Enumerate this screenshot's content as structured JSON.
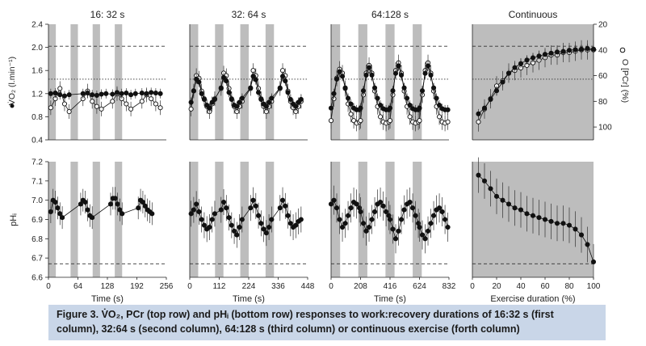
{
  "caption": {
    "label": "Figure 3.",
    "text": "V̇O₂, PCr (top row) and pHᵢ (bottom row) responses to work:recovery durations of 16:32 s (first column), 32:64 s (second column), 64:128 s (third column) or continuous exercise (forth column)"
  },
  "columns": [
    {
      "title": "16: 32 s",
      "xlabel": "Time (s)",
      "xticks": [
        "0",
        "64",
        "128",
        "192",
        "256"
      ],
      "xlim": [
        0,
        256
      ],
      "work_s": 16,
      "rec_s": 32,
      "n_cycles": 4
    },
    {
      "title": "32: 64 s",
      "xlabel": "Time (s)",
      "xticks": [
        "0",
        "112",
        "224",
        "336",
        "448"
      ],
      "xlim": [
        0,
        448
      ],
      "work_s": 32,
      "rec_s": 64,
      "n_cycles": 4
    },
    {
      "title": "64:128 s",
      "xlabel": "Time (s)",
      "xticks": [
        "0",
        "208",
        "416",
        "624",
        "832"
      ],
      "xlim": [
        0,
        832
      ],
      "work_s": 64,
      "rec_s": 128,
      "n_cycles": 4
    },
    {
      "title": "Continuous",
      "xlabel": "Exercise duration (%)",
      "xticks": [
        "0",
        "20",
        "40",
        "60",
        "80",
        "100"
      ],
      "xlim": [
        0,
        100
      ]
    }
  ],
  "axes": {
    "vo2": {
      "label": "V̇O₂ (l.min⁻¹)",
      "legend_marker": "filled circle",
      "ylim": [
        0.4,
        2.4
      ],
      "ticks": [
        "0.4",
        "0.8",
        "1.2",
        "1.6",
        "2.0",
        "2.4"
      ]
    },
    "pcr": {
      "label": "O [PCr] (%)",
      "legend_marker": "open circle",
      "ylim_top_to_bottom": [
        20,
        110
      ],
      "ticks": [
        "20",
        "40",
        "60",
        "80",
        "100"
      ]
    },
    "ph": {
      "label": "pHᵢ",
      "ylim": [
        6.6,
        7.2
      ],
      "ticks": [
        "6.6",
        "6.7",
        "6.8",
        "6.9",
        "7.0",
        "7.1",
        "7.2"
      ]
    }
  },
  "reference_lines": {
    "vo2_dashed": 2.02,
    "vo2_dotted": 1.45,
    "ph_dashed": 6.67
  },
  "colors": {
    "work_band": "#bdbdbd",
    "continuous_bg": "#bdbdbd",
    "marker": "#111111",
    "caption_bg": "#c9d6e8"
  },
  "chart_data": [
    {
      "panel": "16:32 VO2 & PCr",
      "type": "scatter",
      "vo2_x": [
        5,
        15,
        25,
        35,
        45,
        75,
        85,
        95,
        105,
        115,
        125,
        139,
        149,
        159,
        169,
        179,
        189,
        203,
        213,
        223,
        233,
        243
      ],
      "vo2_y": [
        1.2,
        1.21,
        1.18,
        1.16,
        1.18,
        1.2,
        1.21,
        1.18,
        1.17,
        1.19,
        1.2,
        1.19,
        1.22,
        1.2,
        1.21,
        1.18,
        1.2,
        1.21,
        1.2,
        1.22,
        1.21,
        1.2
      ],
      "pcr_x": [
        5,
        15,
        25,
        35,
        45,
        75,
        85,
        95,
        105,
        115,
        139,
        149,
        159,
        169,
        179,
        203,
        213,
        223,
        233,
        243
      ],
      "pcr_y": [
        85,
        78,
        70,
        82,
        88,
        78,
        72,
        80,
        84,
        86,
        80,
        74,
        78,
        82,
        86,
        80,
        75,
        78,
        82,
        85
      ]
    },
    {
      "panel": "32:64 VO2 & PCr",
      "type": "scatter",
      "vo2_x": [
        5,
        15,
        25,
        35,
        45,
        55,
        65,
        75,
        85,
        95,
        119,
        129,
        139,
        149,
        159,
        169,
        179,
        189,
        199,
        231,
        241,
        251,
        261,
        271,
        281,
        291,
        301,
        311,
        343,
        353,
        363,
        373,
        383,
        393,
        403,
        413,
        423
      ],
      "vo2_y": [
        1.05,
        1.25,
        1.45,
        1.4,
        1.2,
        1.1,
        1.0,
        0.95,
        1.05,
        1.1,
        1.3,
        1.48,
        1.42,
        1.22,
        1.1,
        1.0,
        0.98,
        1.05,
        1.12,
        1.3,
        1.5,
        1.44,
        1.22,
        1.1,
        1.02,
        0.98,
        1.05,
        1.12,
        1.3,
        1.5,
        1.42,
        1.22,
        1.1,
        1.02,
        0.98,
        1.05,
        1.1
      ],
      "pcr_x": [
        5,
        15,
        25,
        35,
        45,
        55,
        65,
        75,
        85,
        95,
        119,
        129,
        139,
        149,
        159,
        169,
        179,
        189,
        199,
        231,
        241,
        251,
        261,
        271,
        281,
        291,
        301,
        311,
        343,
        353,
        363,
        373,
        383,
        393,
        403,
        413,
        423
      ],
      "pcr_y": [
        86,
        72,
        60,
        62,
        72,
        78,
        84,
        88,
        82,
        78,
        70,
        58,
        60,
        70,
        78,
        84,
        88,
        84,
        80,
        70,
        56,
        60,
        70,
        78,
        84,
        88,
        84,
        80,
        70,
        56,
        60,
        72,
        80,
        85,
        88,
        84,
        80
      ]
    },
    {
      "panel": "64:128 VO2 & PCr",
      "type": "line",
      "vo2_x": [
        0,
        20,
        40,
        60,
        80,
        100,
        120,
        140,
        160,
        180,
        200,
        208,
        228,
        248,
        268,
        288,
        308,
        328,
        348,
        368,
        388,
        408,
        416,
        436,
        456,
        476,
        496,
        516,
        536,
        556,
        576,
        596,
        616,
        624,
        644,
        664,
        684,
        704,
        724,
        744,
        764,
        784,
        804,
        824
      ],
      "vo2_y": [
        0.95,
        1.2,
        1.45,
        1.58,
        1.5,
        1.3,
        1.12,
        1.02,
        0.95,
        0.92,
        0.92,
        0.95,
        1.25,
        1.52,
        1.65,
        1.52,
        1.3,
        1.12,
        1.0,
        0.94,
        0.92,
        0.92,
        0.95,
        1.25,
        1.55,
        1.68,
        1.52,
        1.3,
        1.12,
        1.0,
        0.94,
        0.92,
        0.92,
        0.95,
        1.25,
        1.55,
        1.68,
        1.52,
        1.3,
        1.12,
        1.0,
        0.94,
        0.92,
        0.92
      ],
      "pcr_x": [
        0,
        20,
        40,
        60,
        80,
        100,
        120,
        140,
        160,
        180,
        200,
        208,
        228,
        248,
        268,
        288,
        308,
        328,
        348,
        368,
        388,
        408,
        416,
        436,
        456,
        476,
        496,
        516,
        536,
        556,
        576,
        596,
        616,
        624,
        644,
        664,
        684,
        704,
        724,
        744,
        764,
        784,
        804,
        824
      ],
      "pcr_y": [
        95,
        78,
        62,
        55,
        58,
        70,
        82,
        90,
        95,
        97,
        96,
        95,
        75,
        58,
        52,
        58,
        72,
        84,
        92,
        96,
        97,
        96,
        95,
        75,
        56,
        50,
        58,
        72,
        84,
        92,
        96,
        97,
        96,
        95,
        75,
        56,
        50,
        58,
        72,
        84,
        92,
        96,
        97,
        96
      ]
    },
    {
      "panel": "Continuous VO2 & PCr",
      "type": "line",
      "x": [
        5,
        10,
        15,
        20,
        25,
        30,
        35,
        40,
        45,
        50,
        55,
        60,
        65,
        70,
        75,
        80,
        85,
        90,
        95,
        100
      ],
      "vo2_y": [
        0.85,
        0.95,
        1.1,
        1.25,
        1.4,
        1.55,
        1.65,
        1.72,
        1.78,
        1.82,
        1.85,
        1.88,
        1.9,
        1.92,
        1.93,
        1.95,
        1.96,
        1.97,
        1.98,
        1.97
      ],
      "pcr_y": [
        96,
        86,
        78,
        68,
        64,
        58,
        56,
        54,
        52,
        50,
        48,
        46,
        44,
        44,
        42,
        42,
        41,
        40,
        40,
        40
      ]
    },
    {
      "panel": "16:32 pHi",
      "type": "scatter",
      "x": [
        5,
        10,
        15,
        20,
        25,
        30,
        70,
        75,
        80,
        85,
        90,
        95,
        135,
        140,
        145,
        150,
        155,
        160,
        195,
        200,
        205,
        210,
        215,
        220,
        225
      ],
      "y": [
        6.94,
        7.0,
        6.99,
        6.96,
        6.93,
        6.91,
        6.98,
        7.0,
        6.99,
        6.95,
        6.92,
        6.91,
        6.98,
        7.01,
        7.01,
        6.98,
        6.95,
        6.93,
        6.96,
        7.0,
        6.99,
        6.97,
        6.95,
        6.94,
        6.93
      ]
    },
    {
      "panel": "32:64 pHi",
      "type": "scatter",
      "x": [
        5,
        15,
        25,
        35,
        45,
        55,
        65,
        75,
        85,
        95,
        119,
        129,
        139,
        149,
        159,
        169,
        179,
        189,
        199,
        231,
        241,
        251,
        261,
        271,
        281,
        291,
        301,
        311,
        343,
        353,
        363,
        373,
        383,
        393,
        403,
        413,
        423
      ],
      "y": [
        6.93,
        6.95,
        6.98,
        6.94,
        6.9,
        6.87,
        6.85,
        6.86,
        6.9,
        6.93,
        6.95,
        6.99,
        6.96,
        6.91,
        6.87,
        6.84,
        6.82,
        6.86,
        6.9,
        6.96,
        7.0,
        6.97,
        6.92,
        6.88,
        6.85,
        6.83,
        6.86,
        6.9,
        6.96,
        7.0,
        6.97,
        6.92,
        6.88,
        6.86,
        6.87,
        6.89,
        6.9
      ]
    },
    {
      "panel": "64:128 pHi",
      "type": "line",
      "x": [
        0,
        20,
        40,
        60,
        80,
        100,
        120,
        140,
        160,
        180,
        200,
        208,
        228,
        248,
        268,
        288,
        308,
        328,
        348,
        368,
        388,
        408,
        416,
        436,
        456,
        476,
        496,
        516,
        536,
        556,
        576,
        596,
        616,
        624,
        644,
        664,
        684,
        704,
        724,
        744,
        764,
        784,
        804,
        824
      ],
      "y": [
        6.98,
        7.0,
        6.96,
        6.9,
        6.86,
        6.88,
        6.92,
        6.96,
        6.99,
        6.98,
        6.96,
        6.94,
        6.88,
        6.84,
        6.86,
        6.9,
        6.94,
        6.98,
        6.99,
        6.97,
        6.94,
        6.92,
        6.9,
        6.85,
        6.8,
        6.84,
        6.9,
        6.95,
        6.98,
        6.99,
        6.96,
        6.92,
        6.88,
        6.86,
        6.82,
        6.8,
        6.84,
        6.88,
        6.92,
        6.95,
        6.96,
        6.94,
        6.9,
        6.86
      ]
    },
    {
      "panel": "Continuous pHi",
      "type": "line",
      "x": [
        5,
        10,
        15,
        20,
        25,
        30,
        35,
        40,
        45,
        50,
        55,
        60,
        65,
        70,
        75,
        80,
        85,
        90,
        95,
        100
      ],
      "y": [
        7.13,
        7.1,
        7.06,
        7.02,
        7.0,
        6.98,
        6.96,
        6.95,
        6.93,
        6.92,
        6.91,
        6.9,
        6.89,
        6.88,
        6.88,
        6.87,
        6.85,
        6.82,
        6.77,
        6.68
      ]
    }
  ]
}
